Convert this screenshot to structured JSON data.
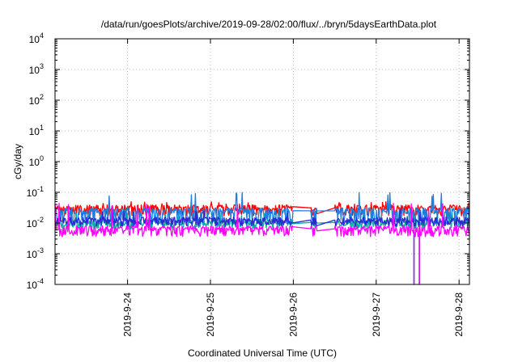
{
  "chart_data": {
    "type": "line",
    "title": "/data/run/goesPlots/archive/2019-09-28/02:00/flux/../bryn/5daysEarthData.plot",
    "xlabel": "Coordinated Universal Time (UTC)",
    "ylabel": "cGy/day",
    "yscale": "log",
    "ylim": [
      0.0001,
      10000
    ],
    "xlim": [
      "2019-09-23 03:00",
      "2019-09-28 03:00"
    ],
    "y_ticks": [
      {
        "value": 0.0001,
        "base": "10",
        "exp": "-4"
      },
      {
        "value": 0.001,
        "base": "10",
        "exp": "-3"
      },
      {
        "value": 0.01,
        "base": "10",
        "exp": "-2"
      },
      {
        "value": 0.1,
        "base": "10",
        "exp": "-1"
      },
      {
        "value": 1,
        "base": "10",
        "exp": "0"
      },
      {
        "value": 10,
        "base": "10",
        "exp": "1"
      },
      {
        "value": 100,
        "base": "10",
        "exp": "2"
      },
      {
        "value": 1000,
        "base": "10",
        "exp": "3"
      },
      {
        "value": 10000,
        "base": "10",
        "exp": "4"
      }
    ],
    "x_ticks": [
      {
        "value": "2019-09-24",
        "label": "2019-9-24"
      },
      {
        "value": "2019-09-25",
        "label": "2019-9-25"
      },
      {
        "value": "2019-09-26",
        "label": "2019-9-26"
      },
      {
        "value": "2019-09-27",
        "label": "2019-9-27"
      },
      {
        "value": "2019-09-28",
        "label": "2019-9-28"
      }
    ],
    "grid": true,
    "data_gaps": [
      {
        "start": "2019-09-26 00:00",
        "end": "2019-09-26 05:00"
      },
      {
        "start": "2019-09-26 07:00",
        "end": "2019-09-26 12:00"
      }
    ],
    "dropouts": [
      {
        "time": "2019-09-27 11:00",
        "to": 0.0001
      },
      {
        "time": "2019-09-27 12:30",
        "to": 0.0001
      }
    ],
    "series": [
      {
        "color": "#ff0000",
        "base": 0.031,
        "low": 0.02,
        "spike": 0.045
      },
      {
        "color": "#1f7fe0",
        "base": 0.025,
        "low": 0.012,
        "spike": 0.09
      },
      {
        "color": "#00b0a0",
        "base": 0.0105,
        "low": 0.0075,
        "spike": 0.02
      },
      {
        "color": "#2a2ad0",
        "base": 0.0125,
        "low": 0.009,
        "spike": 0.025
      },
      {
        "color": "#ff00ff",
        "base": 0.0065,
        "low": 0.0042,
        "spike": 0.04
      }
    ]
  }
}
